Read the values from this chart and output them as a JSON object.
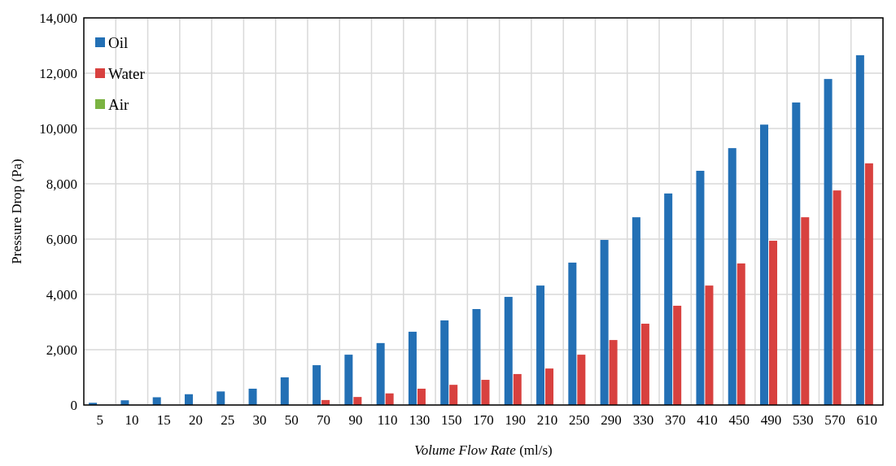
{
  "chart_data": {
    "type": "bar",
    "xlabel": "Volume Flow Rate (ml/s)",
    "ylabel": "Pressure Drop (Pa)",
    "categories": [
      "5",
      "10",
      "15",
      "20",
      "25",
      "30",
      "50",
      "70",
      "90",
      "110",
      "130",
      "150",
      "170",
      "190",
      "210",
      "250",
      "290",
      "330",
      "370",
      "410",
      "450",
      "490",
      "530",
      "570",
      "610"
    ],
    "series": [
      {
        "name": "Oil",
        "color": "#2370b5",
        "values": [
          80,
          170,
          280,
          390,
          490,
          590,
          1000,
          1440,
          1820,
          2240,
          2650,
          3060,
          3470,
          3910,
          4320,
          5150,
          5970,
          6790,
          7650,
          8470,
          9290,
          10140,
          10940,
          11790,
          12650
        ]
      },
      {
        "name": "Water",
        "color": "#d8413f",
        "values": [
          0,
          0,
          0,
          0,
          0,
          0,
          0,
          180,
          290,
          420,
          590,
          730,
          910,
          1120,
          1320,
          1820,
          2350,
          2940,
          3590,
          4320,
          5120,
          5940,
          6790,
          7760,
          8740
        ]
      },
      {
        "name": "Air",
        "color": "#7bb342",
        "values": [
          0,
          0,
          0,
          0,
          0,
          0,
          0,
          0,
          0,
          0,
          0,
          0,
          0,
          0,
          0,
          0,
          0,
          0,
          0,
          0,
          0,
          0,
          0,
          0,
          0
        ]
      }
    ],
    "ylim": [
      0,
      14000
    ],
    "yticks": [
      {
        "value": 0,
        "label": "0"
      },
      {
        "value": 2000,
        "label": "2,000"
      },
      {
        "value": 4000,
        "label": "4,000"
      },
      {
        "value": 6000,
        "label": "6,000"
      },
      {
        "value": 8000,
        "label": "8,000"
      },
      {
        "value": 10000,
        "label": "10,000"
      },
      {
        "value": 12000,
        "label": "12,000"
      },
      {
        "value": 14000,
        "label": "14,000"
      }
    ],
    "grid": true,
    "legend": "top left"
  }
}
